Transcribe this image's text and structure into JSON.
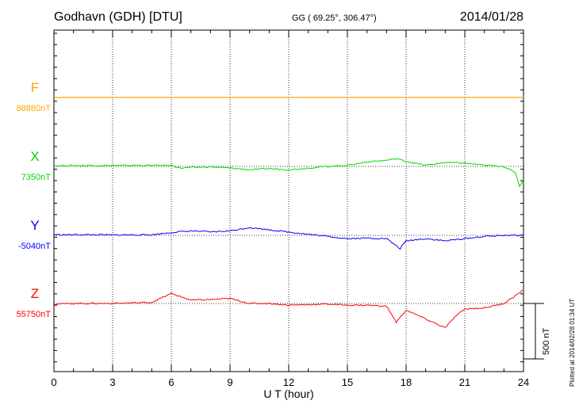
{
  "header": {
    "station": "Godhavn (GDH)  [DTU]",
    "coords": "GG ( 69.25°, 306.47°)",
    "date": "2014/01/28"
  },
  "footer": {
    "plotted": "Plotted at 2014/02/28 01:34 UT"
  },
  "scale": {
    "label": "500 nT",
    "nt": 500
  },
  "chart_data": {
    "type": "line",
    "xlabel": "U T (hour)",
    "xlim": [
      0,
      24
    ],
    "xticks": [
      0,
      3,
      6,
      9,
      12,
      15,
      18,
      21,
      24
    ],
    "tick_labels": [
      "0",
      "3",
      "6",
      "9",
      "12",
      "15",
      "18",
      "21",
      "24"
    ],
    "series": [
      {
        "name": "F",
        "baseline_label": "88880nT",
        "baseline_nt": 88880,
        "color": "#FFA500",
        "points": [
          [
            0,
            0
          ],
          [
            24,
            0
          ]
        ]
      },
      {
        "name": "X",
        "baseline_label": "7350nT",
        "baseline_nt": 7350,
        "color": "#00D800",
        "points": [
          [
            0,
            5
          ],
          [
            1,
            8
          ],
          [
            2,
            8
          ],
          [
            3,
            8
          ],
          [
            4,
            9
          ],
          [
            5,
            9
          ],
          [
            6,
            8
          ],
          [
            6.5,
            -15
          ],
          [
            7,
            -10
          ],
          [
            8,
            -5
          ],
          [
            9,
            -15
          ],
          [
            10,
            -30
          ],
          [
            11,
            -20
          ],
          [
            12,
            -30
          ],
          [
            13,
            -15
          ],
          [
            14,
            0
          ],
          [
            15,
            10
          ],
          [
            16,
            40
          ],
          [
            17,
            55
          ],
          [
            17.5,
            70
          ],
          [
            18,
            45
          ],
          [
            19,
            10
          ],
          [
            20,
            35
          ],
          [
            21,
            30
          ],
          [
            22,
            10
          ],
          [
            23,
            0
          ],
          [
            23.6,
            -60
          ],
          [
            23.8,
            -180
          ],
          [
            24,
            -120
          ]
        ]
      },
      {
        "name": "Y",
        "baseline_label": "-5040nT",
        "baseline_nt": -5040,
        "color": "#0000FF",
        "points": [
          [
            0,
            5
          ],
          [
            1,
            5
          ],
          [
            2,
            5
          ],
          [
            3,
            3
          ],
          [
            4,
            4
          ],
          [
            5,
            5
          ],
          [
            6,
            25
          ],
          [
            7,
            40
          ],
          [
            8,
            30
          ],
          [
            9,
            40
          ],
          [
            10,
            70
          ],
          [
            11,
            50
          ],
          [
            12,
            30
          ],
          [
            13,
            10
          ],
          [
            14,
            -10
          ],
          [
            15,
            -30
          ],
          [
            16,
            -25
          ],
          [
            17,
            -30
          ],
          [
            17.7,
            -120
          ],
          [
            18,
            -50
          ],
          [
            19,
            -30
          ],
          [
            20,
            -50
          ],
          [
            21,
            -30
          ],
          [
            22,
            -10
          ],
          [
            23,
            0
          ],
          [
            24,
            0
          ]
        ]
      },
      {
        "name": "Z",
        "baseline_label": "55750nT",
        "baseline_nt": 55750,
        "color": "#FF0000",
        "points": [
          [
            0,
            -5
          ],
          [
            1,
            0
          ],
          [
            2,
            0
          ],
          [
            3,
            0
          ],
          [
            4,
            5
          ],
          [
            5,
            10
          ],
          [
            6,
            90
          ],
          [
            6.5,
            60
          ],
          [
            7,
            30
          ],
          [
            8,
            35
          ],
          [
            9,
            45
          ],
          [
            10,
            0
          ],
          [
            11,
            0
          ],
          [
            12,
            -15
          ],
          [
            13,
            -10
          ],
          [
            14,
            -5
          ],
          [
            15,
            -15
          ],
          [
            16,
            -15
          ],
          [
            17,
            -25
          ],
          [
            17.5,
            -170
          ],
          [
            18,
            -60
          ],
          [
            19,
            -140
          ],
          [
            20,
            -220
          ],
          [
            20.5,
            -120
          ],
          [
            21,
            -50
          ],
          [
            22,
            -40
          ],
          [
            23,
            0
          ],
          [
            24,
            120
          ]
        ]
      }
    ]
  }
}
